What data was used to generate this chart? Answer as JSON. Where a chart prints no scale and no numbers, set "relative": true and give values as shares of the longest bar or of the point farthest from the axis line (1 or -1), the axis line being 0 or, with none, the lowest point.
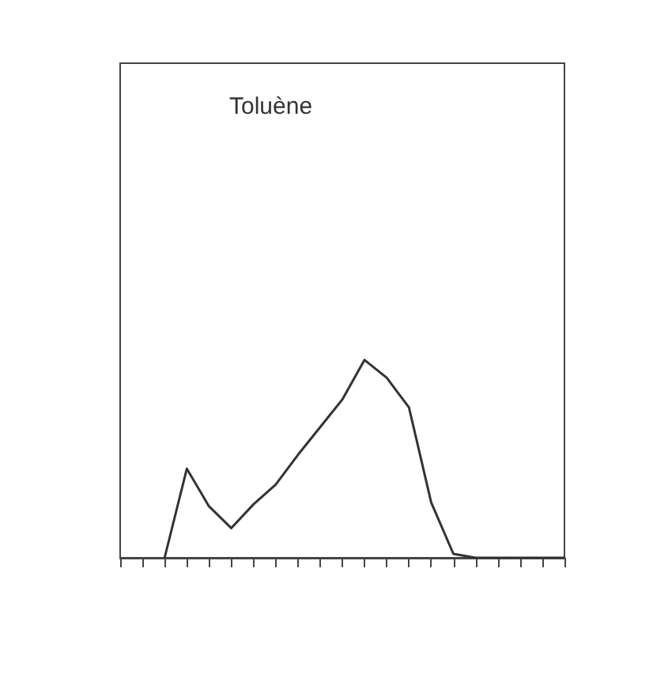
{
  "chart_data": {
    "type": "line",
    "title": "Toluène",
    "relative": true,
    "grid": false,
    "marker": "none",
    "line_style": "solid",
    "categories": [
      null,
      null,
      null,
      null,
      null,
      null,
      null,
      null,
      null,
      null,
      null,
      null,
      null,
      null,
      null,
      null,
      null,
      null,
      null,
      null,
      null
    ],
    "series": [
      {
        "color": "#333333",
        "values": [
          null,
          null,
          0,
          0.45,
          0.26,
          0.15,
          0.27,
          0.37,
          0.52,
          0.66,
          0.8,
          1,
          0.91,
          0.76,
          0.28,
          0.02,
          0,
          0,
          0,
          0,
          0
        ]
      }
    ]
  }
}
